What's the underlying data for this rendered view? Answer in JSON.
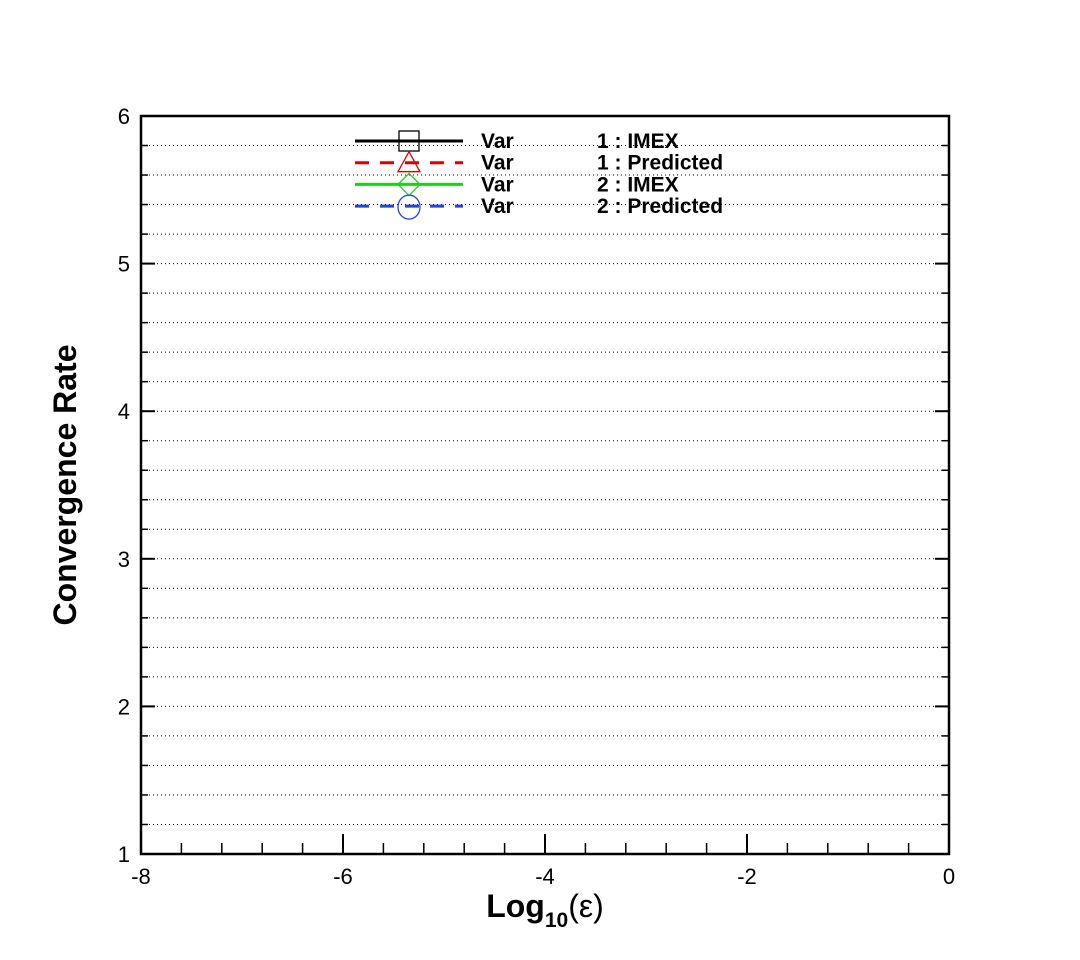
{
  "chart_data": {
    "type": "line",
    "xlabel_main": "Log",
    "xlabel_sub": "10",
    "xlabel_tail": "(ε)",
    "ylabel": "Convergence Rate",
    "xlim": [
      -8,
      0
    ],
    "ylim": [
      1,
      6
    ],
    "xticks": [
      -8,
      -6,
      -4,
      -2,
      0
    ],
    "yticks": [
      1,
      2,
      3,
      4,
      5,
      6
    ],
    "x_minor_step": 0.4,
    "y_minor_step": 0.2,
    "horizontal_grid": "dotted",
    "legend_placement": "top-center",
    "series": [
      {
        "name": "Var 1 : IMEX",
        "legend_var": "Var",
        "legend_label": "1 : IMEX",
        "color": "#000000",
        "dash": "solid",
        "marker": "square",
        "x": [],
        "y": []
      },
      {
        "name": "Var 1 : Predicted",
        "legend_var": "Var",
        "legend_label": "1 : Predicted",
        "color": "#dd0000",
        "dash": "dashed",
        "marker": "triangle",
        "x": [],
        "y": []
      },
      {
        "name": "Var 2 : IMEX",
        "legend_var": "Var",
        "legend_label": "2 : IMEX",
        "color": "#22cc22",
        "dash": "solid",
        "marker": "diamond",
        "x": [],
        "y": []
      },
      {
        "name": "Var 2 : Predicted",
        "legend_var": "Var",
        "legend_label": "2 : Predicted",
        "color": "#2244dd",
        "dash": "dashed",
        "marker": "circle",
        "x": [],
        "y": []
      }
    ]
  }
}
